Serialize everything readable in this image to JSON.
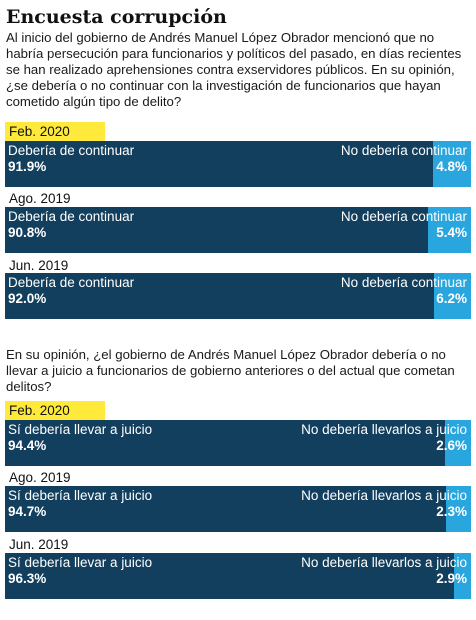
{
  "title": "Encuesta corrupción",
  "questions": [
    {
      "text": "Al inicio del gobierno de Andrés Manuel López Obrador mencionó que no habría persecución para funcionarios y políticos del pasado, en días recientes se han realizado aprehensiones contra exservidores públicos. En su opinión, ¿se debería o no continuar con la investigación de funcionarios que hayan cometido algún tipo de delito?",
      "rows": [
        {
          "period": "Feb. 2020",
          "left_label": "Debería de continuar",
          "left_value": "91.9%",
          "right_label": "No debería continuar",
          "right_value": "4.8%"
        },
        {
          "period": "Ago. 2019",
          "left_label": "Debería de continuar",
          "left_value": "90.8%",
          "right_label": "No debería continuar",
          "right_value": "5.4%"
        },
        {
          "period": "Jun. 2019",
          "left_label": "Debería de continuar",
          "left_value": "92.0%",
          "right_label": "No debería continuar",
          "right_value": "6.2%"
        }
      ]
    },
    {
      "text": "En su opinión, ¿el gobierno de Andrés Manuel López Obrador debería o no llevar a juicio  a funcionarios de gobierno anteriores o del actual que cometan delitos?",
      "rows": [
        {
          "period": "Feb. 2020",
          "left_label": "Sí debería llevar a juicio",
          "left_value": "94.4%",
          "right_label": "No debería llevarlos a juicio",
          "right_value": "2.6%"
        },
        {
          "period": "Ago. 2019",
          "left_label": "Sí debería llevar a juicio",
          "left_value": "94.7%",
          "right_label": "No debería llevarlos a juicio",
          "right_value": "2.3%"
        },
        {
          "period": "Jun. 2019",
          "left_label": "Sí debería llevar a juicio",
          "left_value": "96.3%",
          "right_label": "No debería llevarlos a juicio",
          "right_value": "2.9%"
        }
      ]
    }
  ],
  "colors": {
    "primary": "#123f5e",
    "secondary": "#2aa6de",
    "highlight": "#ffe93a"
  },
  "chart_data": [
    {
      "type": "bar",
      "orientation": "horizontal-stacked",
      "categories": [
        "Feb. 2020",
        "Ago. 2019",
        "Jun. 2019"
      ],
      "series": [
        {
          "name": "Debería de continuar",
          "values": [
            91.9,
            90.8,
            92.0
          ]
        },
        {
          "name": "No debería continuar",
          "values": [
            4.8,
            5.4,
            6.2
          ]
        }
      ]
    },
    {
      "type": "bar",
      "orientation": "horizontal-stacked",
      "categories": [
        "Feb. 2020",
        "Ago. 2019",
        "Jun. 2019"
      ],
      "series": [
        {
          "name": "Sí debería llevar a juicio",
          "values": [
            94.4,
            94.7,
            96.3
          ]
        },
        {
          "name": "No debería llevarlos a juicio",
          "values": [
            2.6,
            2.3,
            2.9
          ]
        }
      ]
    }
  ]
}
